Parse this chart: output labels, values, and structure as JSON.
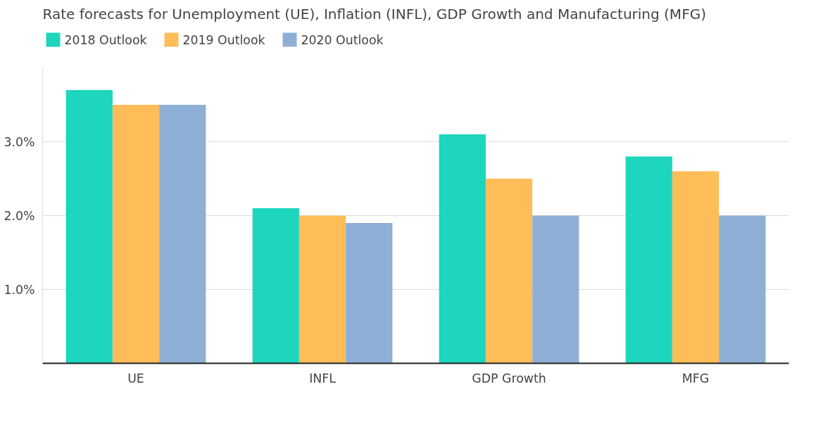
{
  "chart_data": {
    "type": "bar",
    "title": "Rate forecasts for Unemployment (UE), Inflation (INFL), GDP Growth and Manufacturing (MFG)",
    "categories": [
      "UE",
      "INFL",
      "GDP Growth",
      "MFG"
    ],
    "series": [
      {
        "name": "2018 Outlook",
        "color": "#1dd6bd",
        "values": [
          3.7,
          2.1,
          3.1,
          2.8
        ]
      },
      {
        "name": "2019 Outlook",
        "color": "#ffbd59",
        "values": [
          3.5,
          2.0,
          2.5,
          2.6
        ]
      },
      {
        "name": "2020 Outlook",
        "color": "#8fb0d6",
        "values": [
          3.5,
          1.9,
          2.0,
          2.0
        ]
      }
    ],
    "ylim": [
      0,
      4
    ],
    "yticks": [
      {
        "value": 1,
        "label": "1.0%"
      },
      {
        "value": 2,
        "label": "2.0%"
      },
      {
        "value": 3,
        "label": "3.0%"
      }
    ],
    "grid": "y",
    "legend": "top left"
  }
}
